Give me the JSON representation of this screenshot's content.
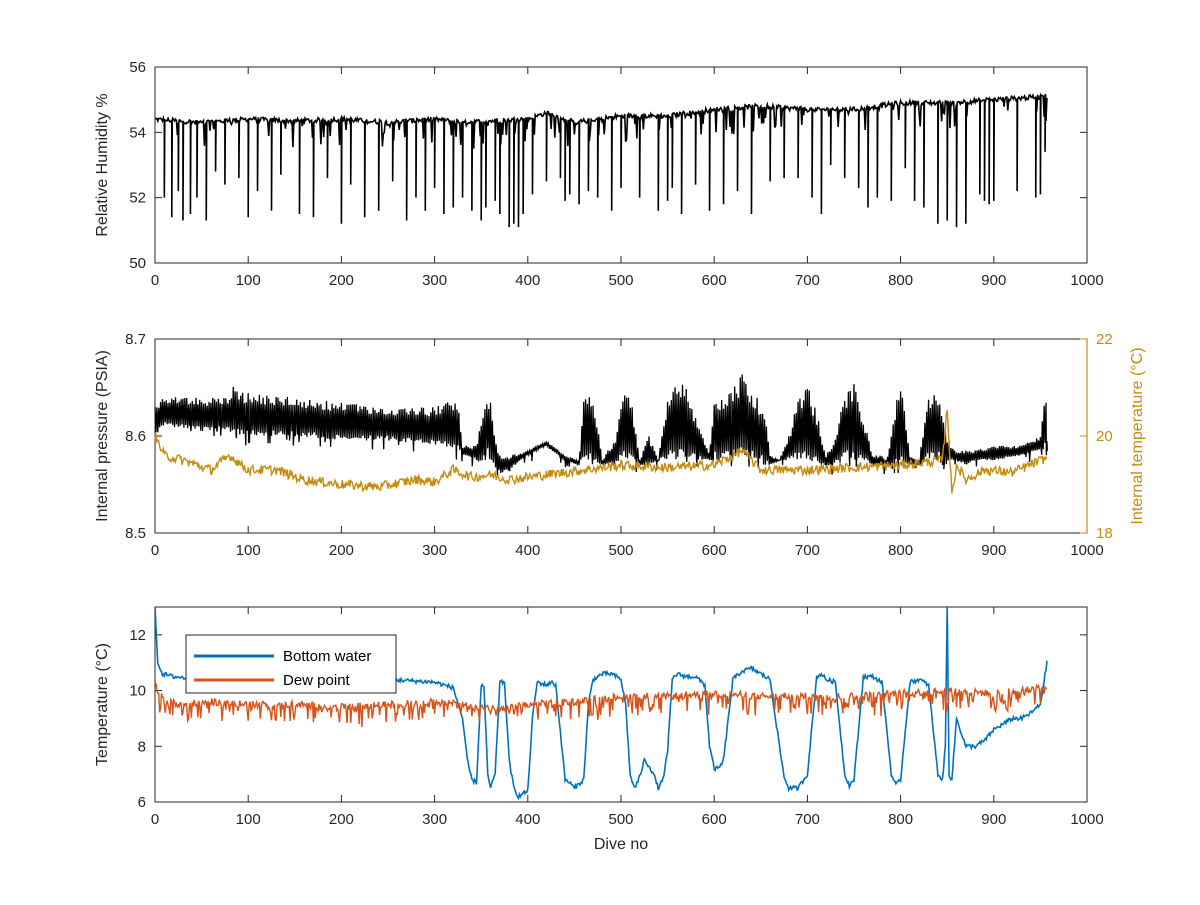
{
  "chart_data": [
    {
      "type": "line",
      "panel": "top",
      "title": "",
      "xlabel": "",
      "ylabel": "Relative Humidity %",
      "xlim": [
        0,
        1000
      ],
      "ylim": [
        50,
        56
      ],
      "xticks": [
        "0",
        "100",
        "200",
        "300",
        "400",
        "500",
        "600",
        "700",
        "800",
        "900",
        "1000"
      ],
      "yticks": [
        "50",
        "52",
        "54",
        "56"
      ],
      "grid": false,
      "series": [
        {
          "color": "#000000",
          "baseline_x": [
            0,
            50,
            100,
            150,
            200,
            250,
            300,
            330,
            360,
            400,
            420,
            450,
            500,
            550,
            600,
            650,
            700,
            750,
            800,
            850,
            900,
            957
          ],
          "baseline_y": [
            54.4,
            54.3,
            54.4,
            54.35,
            54.4,
            54.3,
            54.4,
            54.3,
            54.35,
            54.4,
            54.6,
            54.3,
            54.5,
            54.5,
            54.7,
            54.8,
            54.7,
            54.7,
            54.9,
            54.9,
            55.0,
            55.1
          ],
          "dip_x": [
            10,
            18,
            25,
            30,
            38,
            45,
            55,
            65,
            75,
            90,
            100,
            110,
            125,
            135,
            155,
            170,
            185,
            200,
            210,
            225,
            240,
            255,
            270,
            280,
            290,
            300,
            310,
            320,
            330,
            340,
            350,
            355,
            365,
            370,
            380,
            385,
            390,
            395,
            405,
            420,
            435,
            440,
            445,
            455,
            465,
            475,
            490,
            500,
            520,
            540,
            550,
            555,
            565,
            580,
            595,
            610,
            625,
            640,
            660,
            675,
            690,
            705,
            715,
            725,
            740,
            755,
            765,
            775,
            790,
            805,
            815,
            825,
            840,
            850,
            860,
            870,
            885,
            890,
            895,
            900,
            925,
            945,
            950,
            955
          ],
          "dip_y": [
            52.0,
            51.4,
            52.2,
            51.3,
            51.5,
            52.0,
            51.3,
            52.8,
            52.4,
            52.6,
            51.4,
            52.2,
            51.6,
            52.7,
            51.5,
            51.4,
            52.6,
            51.2,
            52.4,
            51.4,
            51.6,
            52.5,
            51.3,
            52.0,
            51.6,
            52.3,
            51.5,
            51.7,
            52.0,
            51.6,
            51.3,
            51.7,
            51.9,
            51.5,
            51.1,
            51.2,
            51.1,
            51.5,
            52.1,
            52.5,
            52.6,
            51.9,
            52.1,
            51.8,
            52.2,
            52.0,
            51.6,
            52.3,
            52.0,
            51.6,
            51.9,
            52.3,
            51.5,
            52.4,
            51.6,
            51.8,
            52.2,
            51.5,
            52.5,
            52.6,
            52.6,
            52.0,
            51.5,
            53.0,
            52.6,
            52.3,
            51.7,
            52.0,
            51.9,
            52.9,
            51.9,
            51.7,
            51.2,
            51.3,
            51.1,
            51.2,
            52.1,
            51.9,
            51.8,
            51.9,
            52.2,
            52.0,
            52.1,
            53.4
          ]
        }
      ]
    },
    {
      "type": "line",
      "panel": "middle",
      "title": "",
      "xlabel": "",
      "ylabel": "Internal pressure (PSIA)",
      "ylabel_right": "Internal temperature (°C)",
      "xlim": [
        0,
        1000
      ],
      "ylim": [
        8.5,
        8.7
      ],
      "ylim_right": [
        18,
        22
      ],
      "xticks": [
        "0",
        "100",
        "200",
        "300",
        "400",
        "500",
        "600",
        "700",
        "800",
        "900",
        "1000"
      ],
      "yticks": [
        "8.5",
        "8.6",
        "8.7"
      ],
      "yticks_right": [
        "18",
        "20",
        "22"
      ],
      "grid": false,
      "series": [
        {
          "axis": "left",
          "color": "#000000",
          "x": [
            0,
            10,
            50,
            80,
            85,
            90,
            150,
            200,
            250,
            300,
            325,
            330,
            345,
            350,
            355,
            360,
            365,
            370,
            380,
            400,
            420,
            440,
            455,
            460,
            470,
            480,
            495,
            500,
            510,
            520,
            530,
            540,
            550,
            560,
            570,
            580,
            595,
            600,
            620,
            630,
            640,
            655,
            660,
            670,
            680,
            690,
            700,
            710,
            720,
            730,
            740,
            750,
            760,
            770,
            780,
            785,
            790,
            795,
            800,
            805,
            810,
            820,
            825,
            830,
            840,
            845,
            850,
            855,
            860,
            870,
            880,
            900,
            930,
            950,
            957
          ],
          "y_low": [
            8.6,
            8.61,
            8.605,
            8.605,
            8.6,
            8.6,
            8.6,
            8.595,
            8.595,
            8.59,
            8.585,
            8.58,
            8.575,
            8.57,
            8.58,
            8.575,
            8.57,
            8.56,
            8.565,
            8.58,
            8.59,
            8.575,
            8.57,
            8.575,
            8.575,
            8.57,
            8.57,
            8.575,
            8.575,
            8.57,
            8.57,
            8.575,
            8.575,
            8.575,
            8.575,
            8.575,
            8.575,
            8.575,
            8.575,
            8.575,
            8.575,
            8.57,
            8.57,
            8.575,
            8.575,
            8.575,
            8.575,
            8.57,
            8.57,
            8.57,
            8.575,
            8.575,
            8.575,
            8.57,
            8.57,
            8.57,
            8.565,
            8.565,
            8.57,
            8.57,
            8.57,
            8.57,
            8.57,
            8.575,
            8.575,
            8.57,
            8.57,
            8.575,
            8.575,
            8.57,
            8.575,
            8.575,
            8.58,
            8.585,
            8.585
          ],
          "y_high": [
            8.63,
            8.64,
            8.64,
            8.64,
            8.665,
            8.645,
            8.64,
            8.635,
            8.63,
            8.63,
            8.64,
            8.59,
            8.59,
            8.62,
            8.64,
            8.645,
            8.6,
            8.58,
            8.58,
            8.585,
            8.595,
            8.58,
            8.575,
            8.64,
            8.645,
            8.575,
            8.6,
            8.64,
            8.645,
            8.575,
            8.6,
            8.575,
            8.64,
            8.655,
            8.66,
            8.62,
            8.58,
            8.64,
            8.65,
            8.665,
            8.65,
            8.625,
            8.58,
            8.575,
            8.6,
            8.64,
            8.655,
            8.625,
            8.58,
            8.6,
            8.645,
            8.655,
            8.62,
            8.58,
            8.58,
            8.575,
            8.6,
            8.64,
            8.65,
            8.625,
            8.58,
            8.575,
            8.615,
            8.64,
            8.645,
            8.62,
            8.6,
            8.59,
            8.585,
            8.585,
            8.585,
            8.59,
            8.59,
            8.6,
            8.655
          ]
        },
        {
          "axis": "right",
          "color": "#C58C10",
          "x": [
            0,
            10,
            30,
            60,
            80,
            100,
            130,
            160,
            200,
            240,
            280,
            300,
            320,
            340,
            360,
            380,
            420,
            460,
            500,
            550,
            600,
            630,
            650,
            700,
            750,
            800,
            845,
            850,
            855,
            860,
            870,
            890,
            920,
            957
          ],
          "y": [
            20.0,
            19.6,
            19.5,
            19.3,
            19.6,
            19.3,
            19.3,
            19.1,
            19.0,
            18.95,
            19.1,
            19.05,
            19.3,
            19.15,
            19.2,
            19.1,
            19.2,
            19.3,
            19.4,
            19.35,
            19.4,
            19.7,
            19.3,
            19.3,
            19.35,
            19.4,
            19.5,
            20.6,
            18.8,
            19.4,
            19.1,
            19.3,
            19.25,
            19.55
          ]
        }
      ]
    },
    {
      "type": "line",
      "panel": "bottom",
      "title": "",
      "xlabel": "Dive no",
      "ylabel": "Temperature (°C)",
      "xlim": [
        0,
        1000
      ],
      "ylim": [
        6,
        13
      ],
      "xticks": [
        "0",
        "100",
        "200",
        "300",
        "400",
        "500",
        "600",
        "700",
        "800",
        "900",
        "1000"
      ],
      "yticks": [
        "6",
        "8",
        "10",
        "12"
      ],
      "grid": false,
      "legend_position": "top-left",
      "series": [
        {
          "name": "Bottom water",
          "color": "#0072BD",
          "x": [
            0,
            3,
            8,
            20,
            50,
            100,
            150,
            200,
            250,
            300,
            320,
            330,
            335,
            340,
            345,
            350,
            353,
            357,
            360,
            365,
            370,
            375,
            380,
            385,
            390,
            395,
            400,
            405,
            410,
            420,
            425,
            430,
            435,
            440,
            445,
            450,
            460,
            465,
            470,
            480,
            490,
            500,
            505,
            510,
            515,
            520,
            525,
            530,
            535,
            540,
            545,
            550,
            555,
            560,
            570,
            580,
            590,
            595,
            600,
            605,
            610,
            620,
            630,
            640,
            650,
            660,
            670,
            675,
            680,
            690,
            700,
            710,
            715,
            720,
            730,
            740,
            745,
            750,
            760,
            770,
            780,
            790,
            795,
            800,
            810,
            820,
            830,
            840,
            845,
            848,
            850,
            852,
            855,
            860,
            870,
            880,
            890,
            900,
            910,
            920,
            930,
            940,
            950,
            957
          ],
          "y": [
            13.0,
            11.0,
            10.6,
            10.5,
            10.4,
            10.4,
            10.3,
            10.3,
            10.4,
            10.3,
            10.1,
            9.0,
            7.5,
            6.8,
            6.7,
            10.2,
            10.1,
            7.0,
            6.5,
            7.0,
            10.3,
            10.3,
            7.5,
            6.5,
            6.2,
            6.3,
            6.4,
            9.0,
            10.3,
            10.2,
            10.3,
            10.2,
            8.5,
            6.8,
            6.7,
            6.5,
            6.8,
            9.5,
            10.4,
            10.6,
            10.6,
            10.4,
            9.5,
            6.9,
            6.5,
            6.9,
            7.5,
            7.3,
            7.0,
            6.5,
            6.8,
            7.8,
            10.4,
            10.6,
            10.5,
            10.5,
            10.2,
            8.0,
            7.2,
            7.2,
            7.5,
            10.4,
            10.7,
            10.8,
            10.6,
            10.4,
            8.0,
            6.9,
            6.5,
            6.5,
            7.0,
            10.5,
            10.6,
            10.4,
            10.3,
            7.0,
            6.6,
            6.8,
            10.5,
            10.5,
            10.3,
            7.0,
            6.6,
            6.8,
            10.3,
            10.4,
            10.2,
            7.0,
            6.8,
            8.0,
            13.0,
            7.0,
            6.8,
            9.0,
            8.0,
            8.0,
            8.2,
            8.6,
            8.8,
            9.0,
            9.0,
            9.2,
            9.5,
            11.0
          ]
        },
        {
          "name": "Dew point",
          "color": "#D95319",
          "x": [
            0,
            10,
            30,
            60,
            100,
            150,
            200,
            250,
            300,
            330,
            370,
            400,
            450,
            500,
            550,
            600,
            650,
            700,
            750,
            800,
            850,
            900,
            957
          ],
          "y": [
            10.2,
            9.6,
            9.5,
            9.6,
            9.5,
            9.5,
            9.4,
            9.5,
            9.6,
            9.5,
            9.3,
            9.5,
            9.6,
            9.8,
            9.8,
            9.9,
            9.8,
            9.8,
            9.8,
            9.9,
            10.0,
            9.9,
            10.1
          ],
          "noise_amplitude": 0.7
        }
      ]
    }
  ]
}
